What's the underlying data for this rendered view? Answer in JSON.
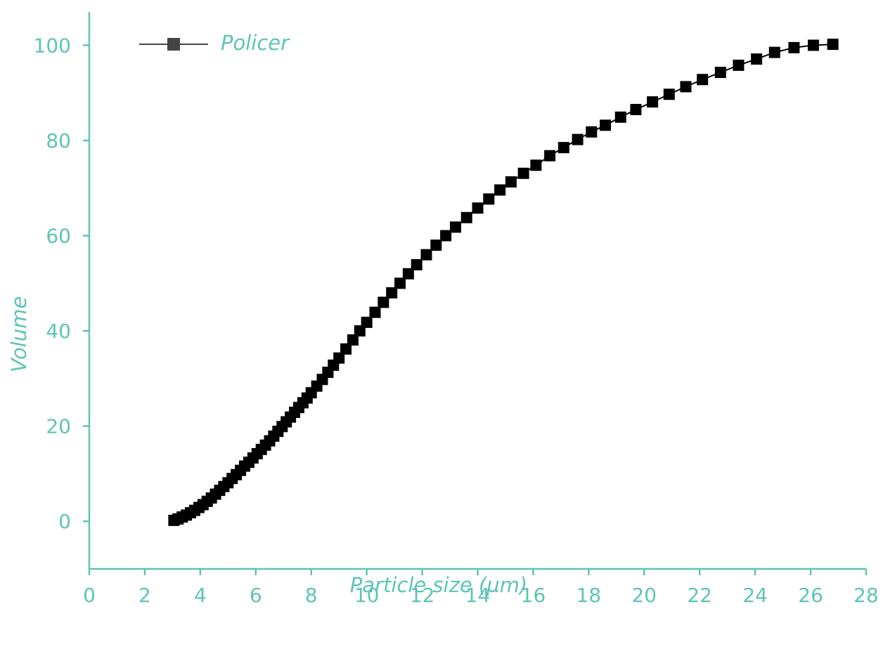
{
  "chart_data": {
    "type": "line",
    "title": "",
    "xlabel": "Particle size (µm)",
    "ylabel": "Volume",
    "xlim": [
      0,
      28
    ],
    "ylim": [
      -10,
      107
    ],
    "x_ticks": [
      0,
      2,
      4,
      6,
      8,
      10,
      12,
      14,
      16,
      18,
      20,
      22,
      24,
      26,
      28
    ],
    "y_ticks": [
      0,
      20,
      40,
      60,
      80,
      100
    ],
    "grid": false,
    "legend": {
      "position": "top-left",
      "marker": "square"
    },
    "colors": {
      "axis": "#5ec4b6",
      "series": "#000000",
      "legend_marker": "#444444"
    },
    "series": [
      {
        "name": "Policer",
        "marker": "square",
        "x": [
          3.05,
          3.2,
          3.35,
          3.5,
          3.65,
          3.8,
          3.95,
          4.1,
          4.25,
          4.4,
          4.55,
          4.7,
          4.85,
          5.0,
          5.15,
          5.3,
          5.45,
          5.6,
          5.75,
          5.9,
          6.05,
          6.2,
          6.35,
          6.5,
          6.65,
          6.8,
          6.95,
          7.1,
          7.25,
          7.4,
          7.55,
          7.7,
          7.85,
          8.0,
          8.2,
          8.4,
          8.6,
          8.8,
          9.0,
          9.25,
          9.5,
          9.75,
          10.0,
          10.3,
          10.6,
          10.9,
          11.2,
          11.5,
          11.8,
          12.15,
          12.5,
          12.85,
          13.2,
          13.6,
          14.0,
          14.4,
          14.8,
          15.2,
          15.65,
          16.1,
          16.6,
          17.1,
          17.6,
          18.1,
          18.6,
          19.15,
          19.7,
          20.3,
          20.9,
          21.5,
          22.1,
          22.75,
          23.4,
          24.05,
          24.7,
          25.4,
          26.1,
          26.8
        ],
        "y": [
          0.2,
          0.5,
          0.9,
          1.3,
          1.8,
          2.3,
          2.9,
          3.5,
          4.2,
          4.9,
          5.7,
          6.5,
          7.3,
          8.1,
          9.0,
          9.8,
          10.7,
          11.6,
          12.4,
          13.3,
          14.2,
          15.1,
          16.0,
          16.9,
          17.9,
          18.9,
          19.9,
          20.9,
          21.9,
          22.9,
          23.9,
          24.9,
          25.9,
          27.0,
          28.4,
          29.8,
          31.3,
          32.8,
          34.3,
          36.2,
          38.1,
          40.0,
          41.8,
          43.9,
          46.0,
          48.0,
          50.0,
          52.0,
          53.9,
          56.0,
          58.0,
          60.0,
          61.8,
          63.8,
          65.8,
          67.7,
          69.6,
          71.3,
          73.1,
          74.8,
          76.8,
          78.5,
          80.2,
          81.8,
          83.2,
          84.9,
          86.5,
          88.1,
          89.7,
          91.3,
          92.8,
          94.3,
          95.8,
          97.1,
          98.5,
          99.5,
          100.0,
          100.2
        ]
      }
    ]
  }
}
